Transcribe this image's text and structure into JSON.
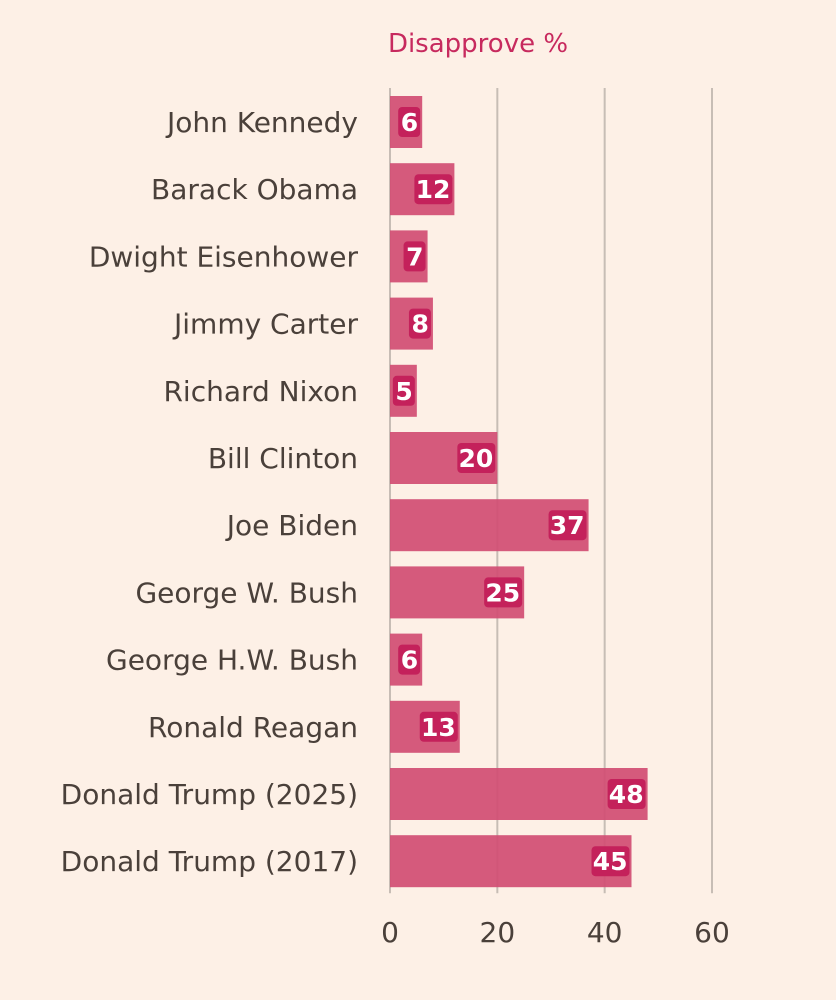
{
  "chart_data": {
    "type": "bar",
    "orientation": "horizontal",
    "title": "",
    "series_title": "Disapprove %",
    "xlabel": "",
    "ylabel": "",
    "categories": [
      "John Kennedy",
      "Barack Obama",
      "Dwight Eisenhower",
      "Jimmy Carter",
      "Richard Nixon",
      "Bill Clinton",
      "Joe Biden",
      "George W. Bush",
      "George H.W. Bush",
      "Ronald Reagan",
      "Donald Trump (2025)",
      "Donald Trump (2017)"
    ],
    "series": [
      {
        "name": "Disapprove %",
        "values": [
          6,
          12,
          7,
          8,
          5,
          20,
          37,
          25,
          6,
          13,
          48,
          45
        ]
      }
    ],
    "xlim": [
      0,
      60
    ],
    "xticks": [
      0,
      20,
      40,
      60
    ],
    "xtick_labels": [
      "0",
      "20",
      "40",
      "60"
    ],
    "grid": true,
    "data_labels": true,
    "legend": "none"
  },
  "colors": {
    "background": "#fdf0e6",
    "bar": "#d14d73",
    "label_highlight": "#c4215b",
    "title": "#c72a5e",
    "text": "#4a403a",
    "grid": "#c7bdb5"
  }
}
